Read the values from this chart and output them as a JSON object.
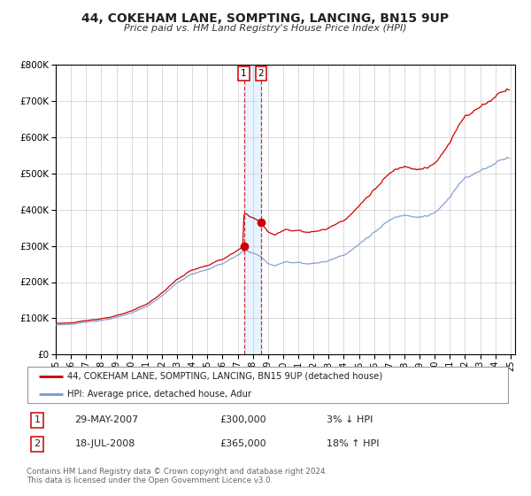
{
  "title": "44, COKEHAM LANE, SOMPTING, LANCING, BN15 9UP",
  "subtitle": "Price paid vs. HM Land Registry's House Price Index (HPI)",
  "legend_line1": "44, COKEHAM LANE, SOMPTING, LANCING, BN15 9UP (detached house)",
  "legend_line2": "HPI: Average price, detached house, Adur",
  "transaction1_date": "29-MAY-2007",
  "transaction1_price": "£300,000",
  "transaction1_hpi": "3% ↓ HPI",
  "transaction2_date": "18-JUL-2008",
  "transaction2_price": "£365,000",
  "transaction2_hpi": "18% ↑ HPI",
  "footnote": "Contains HM Land Registry data © Crown copyright and database right 2024.\nThis data is licensed under the Open Government Licence v3.0.",
  "price_color": "#cc0000",
  "hpi_color": "#7799cc",
  "shading_color": "#ddeeff",
  "ylim": [
    0,
    800000
  ],
  "yticks": [
    0,
    100000,
    200000,
    300000,
    400000,
    500000,
    600000,
    700000,
    800000
  ],
  "transaction1_x": 2007.41,
  "transaction2_x": 2008.54,
  "transaction1_y": 300000,
  "transaction2_y": 365000,
  "xmin": 1995,
  "xmax": 2025.3
}
